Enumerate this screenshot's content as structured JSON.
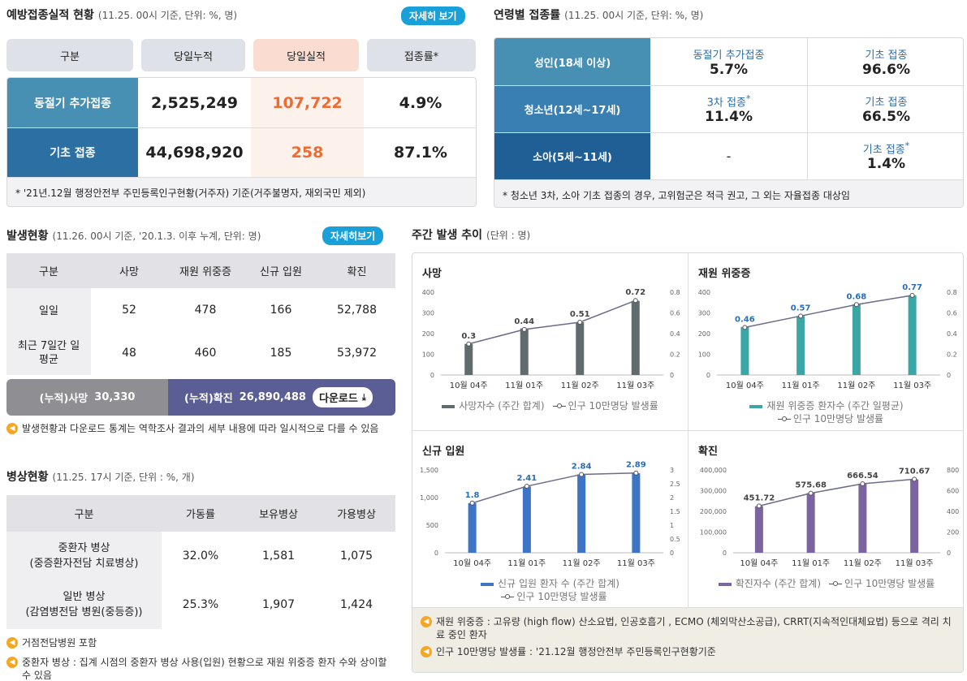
{
  "vacc": {
    "title": "예방접종실적 현황",
    "sub": "(11.25. 00시 기준, 단위: %, 명)",
    "btn": "자세히 보기",
    "headers": [
      "구분",
      "당일누적",
      "당일실적",
      "접종률*"
    ],
    "rows": [
      {
        "label": "동절기 추가접종",
        "cum": "2,525,249",
        "today": "107,722",
        "rate": "4.9%"
      },
      {
        "label": "기초 접종",
        "cum": "44,698,920",
        "today": "258",
        "rate": "87.1%"
      }
    ],
    "note": "* '21년.12월 행정안전부 주민등록인구현황(거주자) 기준(거주불명자, 재외국민 제외)"
  },
  "age": {
    "title": "연령별 접종률",
    "sub": "(11.25. 00시 기준, 단위: %, 명)",
    "rows": [
      {
        "label": "성인(18세 이상)",
        "a_label": "동절기 추가접종",
        "a_val": "5.7%",
        "b_label": "기초 접종",
        "b_val": "96.6%"
      },
      {
        "label": "청소년(12세~17세)",
        "a_label": "3차 접종",
        "a_sup": "*",
        "a_val": "11.4%",
        "b_label": "기초 접종",
        "b_val": "66.5%"
      },
      {
        "label": "소아(5세~11세)",
        "a_label": "",
        "a_val": "-",
        "b_label": "기초 접종",
        "b_sup": "*",
        "b_val": "1.4%"
      }
    ],
    "note": "* 청소년 3차, 소아 기초 접종의 경우, 고위험군은 적극 권고, 그 외는 자율접종 대상임"
  },
  "occ": {
    "title": "발생현황",
    "sub": "(11.26. 00시 기준, '20.1.3. 이후 누계, 단위: 명)",
    "btn": "자세히보기",
    "headers": [
      "구분",
      "사망",
      "재원 위중증",
      "신규 입원",
      "확진"
    ],
    "rows": [
      {
        "label": "일일",
        "v": [
          "52",
          "478",
          "166",
          "52,788"
        ]
      },
      {
        "label": "최근 7일간 일평균",
        "v": [
          "48",
          "460",
          "185",
          "53,972"
        ]
      }
    ],
    "cum_death_label": "(누적)사망",
    "cum_death": "30,330",
    "cum_conf_label": "(누적)확진",
    "cum_conf": "26,890,488",
    "download": "다운로드",
    "note": "발생현황과 다운로드 통계는 역학조사 결과의 세부 내용에 따라 일시적으로 다를 수 있음"
  },
  "beds": {
    "title": "병상현황",
    "sub": "(11.25. 17시 기준, 단위 : %, 개)",
    "headers": [
      "구분",
      "가동률",
      "보유병상",
      "가용병상"
    ],
    "rows": [
      {
        "label": "중환자 병상",
        "label2": "(중증환자전담 치료병상)",
        "v": [
          "32.0%",
          "1,581",
          "1,075"
        ]
      },
      {
        "label": "일반 병상",
        "label2": "(감염병전담 병원(중등증))",
        "v": [
          "25.3%",
          "1,907",
          "1,424"
        ]
      }
    ],
    "note1": "거점전담병원 포함",
    "note2": "중환자 병상 : 집계 시점의 중환자 병상 사용(입원) 현황으로 재원 위중증 환자 수와 상이할 수 있음"
  },
  "weekly": {
    "title": "주간 발생 추이",
    "sub": "(단위 : 명)",
    "note1": "재원 위중증 : 고유량 (high flow) 산소요법, 인공호흡기 , ECMO (체외막산소공급), CRRT(지속적인대체요법) 등으로 격리 치료 중인 환자",
    "note2": "인구 10만명당 발생률 : '21.12월 행정안전부 주민등록인구현황기준"
  },
  "chart_data": [
    {
      "type": "bar",
      "title": "사망",
      "categories": [
        "10월 04주",
        "11월 01주",
        "11월 02주",
        "11월 03주"
      ],
      "series": [
        {
          "name": "사망자수 (주간 합계)",
          "values": [
            150,
            225,
            255,
            358
          ],
          "color": "#5f6b6d"
        },
        {
          "name": "인구 10만명당 발생률",
          "values": [
            0.3,
            0.44,
            0.51,
            0.72
          ],
          "axis": "right"
        }
      ],
      "ylim": [
        0,
        400
      ],
      "y2lim": [
        0,
        0.8
      ],
      "yticks": [
        "0",
        "100",
        "200",
        "300",
        "400"
      ],
      "y2ticks": [
        "0",
        "0.2",
        "0.4",
        "0.6",
        "0.8"
      ],
      "labels": [
        "0.3",
        "0.44",
        "0.51",
        "0.72"
      ]
    },
    {
      "type": "bar",
      "title": "재원 위중증",
      "categories": [
        "10월 04주",
        "11월 01주",
        "11월 02주",
        "11월 03주"
      ],
      "series": [
        {
          "name": "재원 위중증 환자수 (주간 일평균)",
          "values": [
            232,
            285,
            342,
            385
          ],
          "color": "#3aa6a6"
        },
        {
          "name": "인구 10만명당 발생률",
          "values": [
            0.46,
            0.57,
            0.68,
            0.77
          ],
          "axis": "right"
        }
      ],
      "ylim": [
        0,
        400
      ],
      "y2lim": [
        0,
        0.8
      ],
      "yticks": [
        "0",
        "100",
        "200",
        "300",
        "400"
      ],
      "y2ticks": [
        "0",
        "0.2",
        "0.4",
        "0.6",
        "0.8"
      ],
      "labels": [
        "0.46",
        "0.57",
        "0.68",
        "0.77"
      ]
    },
    {
      "type": "bar",
      "title": "신규 입원",
      "categories": [
        "10월 04주",
        "11월 01주",
        "11월 02주",
        "11월 03주"
      ],
      "series": [
        {
          "name": "신규 입원 환자 수 (주간 합계)",
          "values": [
            900,
            1200,
            1420,
            1440
          ],
          "color": "#3e74c6"
        },
        {
          "name": "인구 10만명당 발생률",
          "values": [
            1.8,
            2.41,
            2.84,
            2.89
          ],
          "axis": "right"
        }
      ],
      "ylim": [
        0,
        1500
      ],
      "y2lim": [
        0,
        3
      ],
      "yticks": [
        "0",
        "500",
        "1,000",
        "1,500"
      ],
      "y2ticks": [
        "0",
        "0.5",
        "1",
        "1.5",
        "2",
        "2.5",
        "3"
      ],
      "labels": [
        "1.8",
        "2.41",
        "2.84",
        "2.89"
      ]
    },
    {
      "type": "bar",
      "title": "확진",
      "categories": [
        "10월 04주",
        "11월 01주",
        "11월 02주",
        "11월 03주"
      ],
      "series": [
        {
          "name": "확진자수 (주간 합계)",
          "values": [
            225000,
            288000,
            332000,
            355000
          ],
          "color": "#7b64a0"
        },
        {
          "name": "인구 10만명당 발생률",
          "values": [
            451.72,
            575.68,
            666.54,
            710.67
          ],
          "axis": "right"
        }
      ],
      "ylim": [
        0,
        400000
      ],
      "y2lim": [
        0,
        800
      ],
      "yticks": [
        "0",
        "100,000",
        "200,000",
        "300,000",
        "400,000"
      ],
      "y2ticks": [
        "0",
        "200",
        "400",
        "600",
        "800"
      ],
      "labels": [
        "451.72",
        "575.68",
        "666.54",
        "710.67"
      ]
    }
  ]
}
